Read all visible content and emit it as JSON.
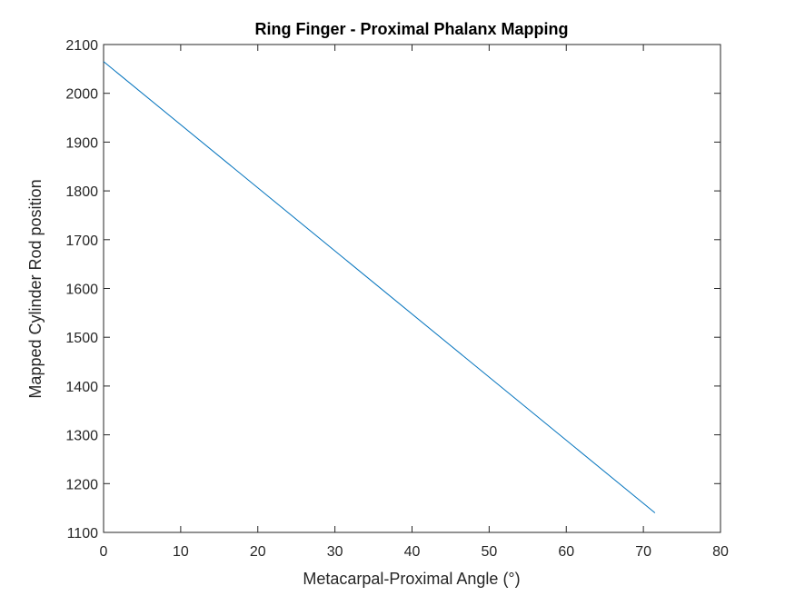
{
  "chart_data": {
    "type": "line",
    "title": "Ring Finger - Proximal Phalanx Mapping",
    "xlabel": "Metacarpal-Proximal Angle (°)",
    "ylabel": "Mapped Cylinder Rod position",
    "xlim": [
      0,
      80
    ],
    "ylim": [
      1100,
      2100
    ],
    "xticks": [
      "0",
      "10",
      "20",
      "30",
      "40",
      "50",
      "60",
      "70",
      "80"
    ],
    "yticks": [
      "1100",
      "1200",
      "1300",
      "1400",
      "1500",
      "1600",
      "1700",
      "1800",
      "1900",
      "2000",
      "2100"
    ],
    "grid": false,
    "series": [
      {
        "color": "#0072BD",
        "x": [
          0,
          71.5
        ],
        "y": [
          2065,
          1140
        ]
      }
    ]
  }
}
